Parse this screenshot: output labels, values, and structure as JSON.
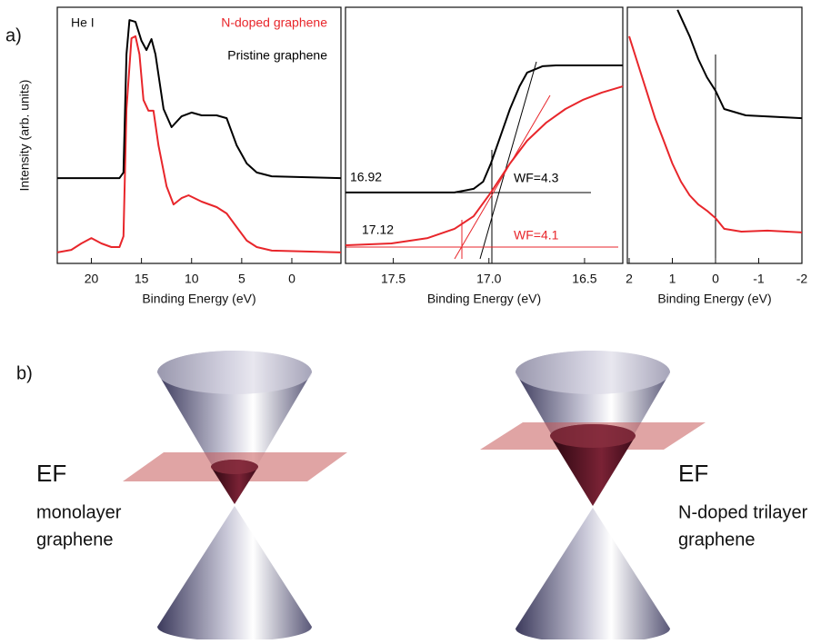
{
  "figure": {
    "panel_a_label": "a)",
    "panel_b_label": "b)"
  },
  "chart_data": [
    {
      "type": "line",
      "xlabel": "Binding Energy (eV)",
      "ylabel": "Intensity (arb. units)",
      "annotations": [
        "He I"
      ],
      "xlim": [
        23.4,
        -4.9
      ],
      "xticks": [
        20,
        15,
        10,
        5,
        0
      ],
      "ylim": [
        0,
        10
      ],
      "series": [
        {
          "name": "N-doped graphene",
          "color": "#e8262b",
          "x": [
            23.4,
            22,
            21,
            20,
            19,
            18,
            17.2,
            16.8,
            16.5,
            16.0,
            15.6,
            15.2,
            14.8,
            14.3,
            13.8,
            13.3,
            12.5,
            11.8,
            11,
            10.3,
            9,
            7.5,
            6.5,
            5.5,
            4.5,
            3.5,
            2,
            -4.9
          ],
          "values": [
            0.43,
            0.53,
            0.78,
            0.99,
            0.78,
            0.64,
            0.64,
            1.06,
            6.03,
            8.79,
            8.87,
            8.16,
            6.38,
            5.96,
            5.96,
            4.61,
            3.01,
            2.3,
            2.55,
            2.66,
            2.41,
            2.2,
            1.95,
            1.42,
            0.89,
            0.64,
            0.5,
            0.43
          ]
        },
        {
          "name": "Pristine graphene",
          "color": "#000000",
          "x": [
            23.4,
            17.2,
            16.8,
            16.5,
            16.2,
            15.6,
            15.0,
            14.5,
            14.0,
            13.6,
            12.8,
            12,
            11,
            10,
            9,
            7.5,
            6.5,
            5.5,
            4.5,
            3.5,
            2,
            -4.9
          ],
          "values": [
            3.33,
            3.33,
            3.55,
            8.16,
            9.5,
            9.43,
            8.69,
            8.33,
            8.76,
            8.16,
            6.03,
            5.32,
            5.74,
            5.89,
            5.78,
            5.78,
            5.67,
            4.61,
            3.9,
            3.55,
            3.4,
            3.33
          ]
        }
      ]
    },
    {
      "type": "line",
      "xlabel": "Binding Energy (eV)",
      "annotations": [
        {
          "text": "16.92",
          "color": "#000000"
        },
        {
          "text": "WF=4.3",
          "color": "#000000"
        },
        {
          "text": "17.12",
          "color": "#000000"
        },
        {
          "text": "WF=4.1",
          "color": "#e8262b"
        }
      ],
      "xlim": [
        17.75,
        16.3
      ],
      "xticks": [
        17.5,
        {
          "value": 17,
          "label": "17.0"
        },
        16.5
      ],
      "ylim": [
        0,
        10
      ],
      "series": [
        {
          "color": "#000000",
          "x": [
            17.75,
            17.18,
            17.08,
            17.03,
            16.99,
            16.94,
            16.89,
            16.84,
            16.8,
            16.72,
            16.65,
            16.3
          ],
          "values": [
            2.77,
            2.77,
            2.91,
            3.19,
            3.9,
            4.96,
            6.03,
            6.91,
            7.45,
            7.7,
            7.73,
            7.73
          ]
        },
        {
          "color": "#e8262b",
          "x": [
            17.75,
            17.51,
            17.32,
            17.18,
            17.08,
            16.99,
            16.89,
            16.8,
            16.7,
            16.6,
            16.51,
            16.41,
            16.3
          ],
          "values": [
            0.71,
            0.78,
            0.99,
            1.35,
            1.84,
            2.77,
            3.9,
            4.79,
            5.5,
            6.03,
            6.38,
            6.67,
            6.91
          ]
        }
      ]
    },
    {
      "type": "line",
      "xlabel": "Binding Energy (eV)",
      "xlim": [
        2,
        -2
      ],
      "xticks": [
        2,
        1,
        0,
        -1,
        -2
      ],
      "ylim": [
        0,
        10
      ],
      "series": [
        {
          "color": "#000000",
          "x": [
            0.88,
            0.6,
            0.4,
            0.2,
            0,
            -0.2,
            -0.7,
            -2
          ],
          "values": [
            9.9,
            8.87,
            7.98,
            7.27,
            6.74,
            6.03,
            5.78,
            5.67
          ]
        },
        {
          "color": "#e8262b",
          "x": [
            2,
            1.8,
            1.6,
            1.4,
            1.2,
            1,
            0.8,
            0.6,
            0.4,
            0.2,
            0,
            -0.2,
            -0.6,
            -1.2,
            -2
          ],
          "values": [
            8.87,
            7.8,
            6.74,
            5.67,
            4.79,
            3.9,
            3.19,
            2.66,
            2.3,
            2.06,
            1.77,
            1.35,
            1.24,
            1.28,
            1.21
          ]
        }
      ]
    }
  ],
  "diagram": {
    "left": {
      "label": "EF",
      "caption": [
        "monolayer",
        "graphene"
      ]
    },
    "right": {
      "label": "EF",
      "caption": [
        "N-doped trilayer",
        "graphene"
      ]
    }
  }
}
